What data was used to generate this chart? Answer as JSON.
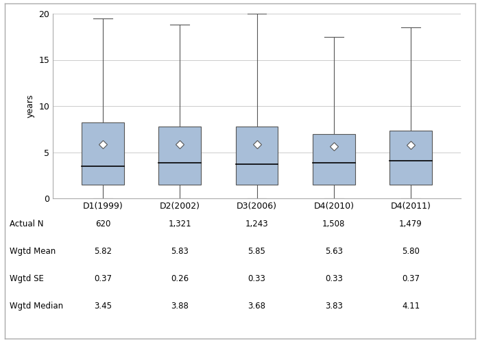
{
  "categories": [
    "D1(1999)",
    "D2(2002)",
    "D3(2006)",
    "D4(2010)",
    "D4(2011)"
  ],
  "actual_n": [
    "620",
    "1,321",
    "1,243",
    "1,508",
    "1,479"
  ],
  "wgtd_mean": [
    "5.82",
    "5.83",
    "5.85",
    "5.63",
    "5.80"
  ],
  "wgtd_se": [
    "0.37",
    "0.26",
    "0.33",
    "0.33",
    "0.37"
  ],
  "wgtd_median": [
    "3.45",
    "3.88",
    "3.68",
    "3.83",
    "4.11"
  ],
  "box_data": [
    {
      "whisker_low": 0.0,
      "q1": 1.5,
      "median": 3.45,
      "q3": 8.2,
      "whisker_high": 19.5,
      "mean": 5.82
    },
    {
      "whisker_low": 0.0,
      "q1": 1.5,
      "median": 3.88,
      "q3": 7.8,
      "whisker_high": 18.8,
      "mean": 5.83
    },
    {
      "whisker_low": 0.0,
      "q1": 1.5,
      "median": 3.68,
      "q3": 7.8,
      "whisker_high": 20.0,
      "mean": 5.85
    },
    {
      "whisker_low": 0.0,
      "q1": 1.5,
      "median": 3.83,
      "q3": 7.0,
      "whisker_high": 17.5,
      "mean": 5.63
    },
    {
      "whisker_low": 0.0,
      "q1": 1.5,
      "median": 4.11,
      "q3": 7.3,
      "whisker_high": 18.5,
      "mean": 5.8
    }
  ],
  "ylim": [
    0,
    20
  ],
  "yticks": [
    0,
    5,
    10,
    15,
    20
  ],
  "ylabel": "years",
  "box_color": "#a8bed8",
  "box_edge_color": "#555555",
  "whisker_color": "#555555",
  "median_color": "#000000",
  "mean_marker_color": "white",
  "mean_marker_edge_color": "#555555",
  "background_color": "#ffffff",
  "grid_color": "#cccccc",
  "box_width": 0.55,
  "table_labels": [
    "Actual N",
    "Wgtd Mean",
    "Wgtd SE",
    "Wgtd Median"
  ],
  "fig_width": 7.0,
  "fig_height": 5.0,
  "outer_border_color": "#aaaaaa"
}
